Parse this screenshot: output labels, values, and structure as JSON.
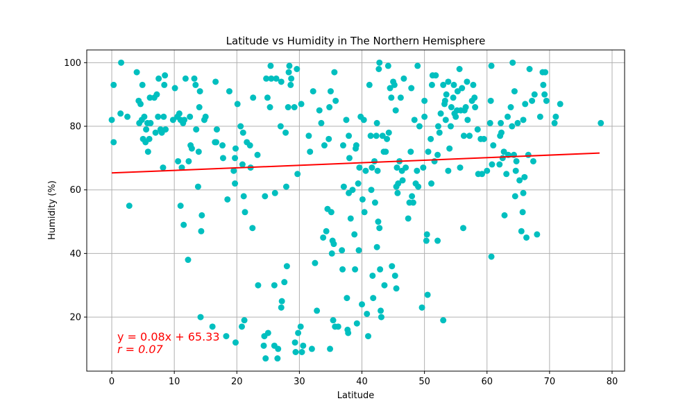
{
  "chart_data": {
    "type": "scatter",
    "title": "Latitude vs Humidity in The Northern Hemisphere",
    "xlabel": "Latitude",
    "ylabel": "Humidity (%)",
    "xlim": [
      -4,
      82
    ],
    "ylim": [
      3,
      104
    ],
    "xticks": [
      0,
      10,
      20,
      30,
      40,
      50,
      60,
      70,
      80
    ],
    "yticks": [
      20,
      40,
      60,
      80,
      100
    ],
    "grid": true,
    "colors": {
      "points": "#00bfbf",
      "regression": "#ff0000",
      "grid": "#b0b0b0",
      "axes": "#000000"
    },
    "regression": {
      "slope": 0.08,
      "intercept": 65.33,
      "x_range": [
        0,
        78
      ],
      "equation_text": "y = 0.08x + 65.33",
      "r_text": "r = 0.07"
    },
    "points": [
      [
        0,
        82
      ],
      [
        0.3,
        93
      ],
      [
        0.3,
        75
      ],
      [
        1.4,
        84
      ],
      [
        1.5,
        100
      ],
      [
        2.5,
        83
      ],
      [
        2.8,
        55
      ],
      [
        4,
        97
      ],
      [
        4.3,
        88
      ],
      [
        4.4,
        81
      ],
      [
        4.6,
        87
      ],
      [
        4.8,
        82
      ],
      [
        4.9,
        93
      ],
      [
        5,
        76
      ],
      [
        5.2,
        83
      ],
      [
        5.4,
        75
      ],
      [
        5.5,
        79
      ],
      [
        5.7,
        81
      ],
      [
        5.8,
        72
      ],
      [
        6,
        76
      ],
      [
        6.1,
        89
      ],
      [
        6.2,
        81
      ],
      [
        6.8,
        89
      ],
      [
        7,
        78
      ],
      [
        7.2,
        90
      ],
      [
        7.4,
        83
      ],
      [
        7.5,
        95
      ],
      [
        7.8,
        79
      ],
      [
        8,
        78
      ],
      [
        8.2,
        67
      ],
      [
        8.3,
        83
      ],
      [
        8.4,
        93
      ],
      [
        8.5,
        96
      ],
      [
        8.6,
        79
      ],
      [
        9.8,
        82
      ],
      [
        10.1,
        92
      ],
      [
        10.5,
        83
      ],
      [
        10.6,
        69
      ],
      [
        10.8,
        84
      ],
      [
        11,
        82
      ],
      [
        11,
        55
      ],
      [
        11.2,
        67
      ],
      [
        11.4,
        81
      ],
      [
        11.5,
        49
      ],
      [
        11.6,
        82
      ],
      [
        11.8,
        95
      ],
      [
        12.2,
        38
      ],
      [
        12.3,
        69
      ],
      [
        12.5,
        83
      ],
      [
        12.6,
        74
      ],
      [
        12.8,
        73
      ],
      [
        13.2,
        95
      ],
      [
        13.4,
        93
      ],
      [
        13.5,
        79
      ],
      [
        13.8,
        61
      ],
      [
        13.9,
        72
      ],
      [
        14,
        86
      ],
      [
        14.1,
        91
      ],
      [
        14.2,
        20
      ],
      [
        14.3,
        47
      ],
      [
        14.4,
        52
      ],
      [
        14.8,
        82
      ],
      [
        15,
        83
      ],
      [
        16.1,
        17
      ],
      [
        16.5,
        75
      ],
      [
        16.6,
        94
      ],
      [
        16.7,
        75
      ],
      [
        16.8,
        79
      ],
      [
        17.7,
        74
      ],
      [
        17.8,
        70
      ],
      [
        18.3,
        14
      ],
      [
        18.5,
        57
      ],
      [
        18.8,
        91
      ],
      [
        19.5,
        66
      ],
      [
        19.7,
        70
      ],
      [
        19.7,
        62
      ],
      [
        19.8,
        73
      ],
      [
        19.8,
        12
      ],
      [
        20.1,
        87
      ],
      [
        20.6,
        80
      ],
      [
        20.8,
        17
      ],
      [
        20.9,
        68
      ],
      [
        21,
        78
      ],
      [
        21.1,
        58
      ],
      [
        21.2,
        19
      ],
      [
        21.3,
        53
      ],
      [
        21.6,
        75
      ],
      [
        22.1,
        74
      ],
      [
        22.2,
        67
      ],
      [
        22.5,
        48
      ],
      [
        22.6,
        89
      ],
      [
        23.3,
        71
      ],
      [
        23.4,
        30
      ],
      [
        24.3,
        11
      ],
      [
        24.4,
        14
      ],
      [
        24.5,
        58
      ],
      [
        24.6,
        7
      ],
      [
        24.7,
        95
      ],
      [
        24.9,
        89
      ],
      [
        25,
        15
      ],
      [
        25.3,
        86
      ],
      [
        25.4,
        99
      ],
      [
        25.5,
        95
      ],
      [
        26,
        11
      ],
      [
        26,
        30
      ],
      [
        26.1,
        59
      ],
      [
        26.3,
        95
      ],
      [
        26.5,
        7
      ],
      [
        26.6,
        10
      ],
      [
        27,
        80
      ],
      [
        27.1,
        94
      ],
      [
        27.1,
        23
      ],
      [
        27.2,
        25
      ],
      [
        27.6,
        31
      ],
      [
        27.8,
        78
      ],
      [
        27.9,
        61
      ],
      [
        28,
        36
      ],
      [
        28.2,
        86
      ],
      [
        28.3,
        97
      ],
      [
        28.4,
        99
      ],
      [
        28.6,
        93
      ],
      [
        28.7,
        95
      ],
      [
        29.2,
        86
      ],
      [
        29.3,
        12
      ],
      [
        29.4,
        9
      ],
      [
        29.6,
        98
      ],
      [
        29.7,
        65
      ],
      [
        29.8,
        15
      ],
      [
        30.2,
        17
      ],
      [
        30.3,
        87
      ],
      [
        30.4,
        9
      ],
      [
        30.6,
        11
      ],
      [
        31.5,
        77
      ],
      [
        31.7,
        72
      ],
      [
        32,
        10
      ],
      [
        32.2,
        91
      ],
      [
        32.5,
        37
      ],
      [
        32.8,
        22
      ],
      [
        33.2,
        85
      ],
      [
        33.5,
        81
      ],
      [
        33.8,
        45
      ],
      [
        34,
        74
      ],
      [
        34.3,
        47
      ],
      [
        34.5,
        54
      ],
      [
        34.7,
        76
      ],
      [
        34.8,
        86
      ],
      [
        34.9,
        10
      ],
      [
        35,
        91
      ],
      [
        35.1,
        53
      ],
      [
        35.2,
        40
      ],
      [
        35.3,
        44
      ],
      [
        35.4,
        19
      ],
      [
        35.5,
        43
      ],
      [
        35.6,
        97
      ],
      [
        35.7,
        17
      ],
      [
        35.8,
        88
      ],
      [
        36.2,
        17
      ],
      [
        36.8,
        41
      ],
      [
        36.9,
        35
      ],
      [
        37,
        74
      ],
      [
        37.1,
        61
      ],
      [
        37.5,
        82
      ],
      [
        37.6,
        26
      ],
      [
        37.7,
        16
      ],
      [
        37.8,
        15
      ],
      [
        37.9,
        59
      ],
      [
        37.9,
        77
      ],
      [
        38,
        70
      ],
      [
        38.2,
        51
      ],
      [
        38.5,
        60
      ],
      [
        38.8,
        46
      ],
      [
        38.9,
        35
      ],
      [
        39,
        73
      ],
      [
        39.1,
        74
      ],
      [
        39.2,
        18
      ],
      [
        39.4,
        62
      ],
      [
        39.5,
        41
      ],
      [
        39.6,
        67
      ],
      [
        39.8,
        83
      ],
      [
        40,
        24
      ],
      [
        40.1,
        57
      ],
      [
        40.3,
        82
      ],
      [
        40.4,
        53
      ],
      [
        40.6,
        66
      ],
      [
        40.8,
        21
      ],
      [
        41,
        14
      ],
      [
        41.2,
        93
      ],
      [
        41.4,
        77
      ],
      [
        41.5,
        60
      ],
      [
        41.6,
        67
      ],
      [
        41.7,
        33
      ],
      [
        41.8,
        26
      ],
      [
        42,
        69
      ],
      [
        42.1,
        56
      ],
      [
        42.3,
        77
      ],
      [
        42.4,
        81
      ],
      [
        42.4,
        42
      ],
      [
        42.5,
        66
      ],
      [
        42.6,
        50
      ],
      [
        42.7,
        98
      ],
      [
        42.8,
        100
      ],
      [
        42.8,
        48
      ],
      [
        42.9,
        35
      ],
      [
        43,
        22
      ],
      [
        43.1,
        20
      ],
      [
        43.3,
        77
      ],
      [
        43.5,
        72
      ],
      [
        43.6,
        30
      ],
      [
        43.8,
        72
      ],
      [
        44,
        76
      ],
      [
        44.2,
        99
      ],
      [
        44.3,
        78
      ],
      [
        44.5,
        92
      ],
      [
        44.7,
        89
      ],
      [
        44.8,
        36
      ],
      [
        45,
        94
      ],
      [
        45.2,
        93
      ],
      [
        45.3,
        33
      ],
      [
        45.4,
        85
      ],
      [
        45.5,
        29
      ],
      [
        45.5,
        61
      ],
      [
        45.6,
        67
      ],
      [
        45.7,
        59
      ],
      [
        45.8,
        62
      ],
      [
        46,
        69
      ],
      [
        46.2,
        89
      ],
      [
        46.4,
        66
      ],
      [
        46.5,
        63
      ],
      [
        46.7,
        95
      ],
      [
        47,
        67
      ],
      [
        47.4,
        51
      ],
      [
        47.6,
        56
      ],
      [
        47.8,
        72
      ],
      [
        47.9,
        92
      ],
      [
        48,
        58
      ],
      [
        48.2,
        56
      ],
      [
        48.4,
        82
      ],
      [
        48.6,
        62
      ],
      [
        48.8,
        66
      ],
      [
        48.9,
        99
      ],
      [
        49,
        61
      ],
      [
        49.2,
        80
      ],
      [
        49.6,
        23
      ],
      [
        49.8,
        67
      ],
      [
        50,
        83
      ],
      [
        50,
        88
      ],
      [
        50.3,
        44
      ],
      [
        50.4,
        46
      ],
      [
        50.5,
        27
      ],
      [
        50.6,
        72
      ],
      [
        51,
        76
      ],
      [
        51.1,
        62
      ],
      [
        51.2,
        93
      ],
      [
        51.3,
        96
      ],
      [
        51.6,
        69
      ],
      [
        51.8,
        96
      ],
      [
        52.1,
        44
      ],
      [
        52.1,
        71
      ],
      [
        52.2,
        80
      ],
      [
        52.4,
        78
      ],
      [
        52.6,
        84
      ],
      [
        53,
        93
      ],
      [
        53,
        19
      ],
      [
        53.2,
        87
      ],
      [
        53.3,
        88
      ],
      [
        53.4,
        82
      ],
      [
        53.5,
        90
      ],
      [
        53.8,
        66
      ],
      [
        53.8,
        94
      ],
      [
        54,
        73
      ],
      [
        54.2,
        80
      ],
      [
        54.3,
        86
      ],
      [
        54.6,
        89
      ],
      [
        54.7,
        93
      ],
      [
        54.8,
        84
      ],
      [
        55,
        83
      ],
      [
        55.2,
        85
      ],
      [
        55.3,
        91
      ],
      [
        55.6,
        98
      ],
      [
        55.7,
        67
      ],
      [
        55.8,
        85
      ],
      [
        56,
        92
      ],
      [
        56.2,
        48
      ],
      [
        56.3,
        77
      ],
      [
        56.4,
        85
      ],
      [
        56.6,
        86
      ],
      [
        56.8,
        94
      ],
      [
        56.9,
        82
      ],
      [
        57.2,
        77
      ],
      [
        57.6,
        88
      ],
      [
        57.8,
        93
      ],
      [
        58,
        89
      ],
      [
        58.1,
        86
      ],
      [
        58.5,
        79
      ],
      [
        58.6,
        65
      ],
      [
        59,
        76
      ],
      [
        59.2,
        65
      ],
      [
        59.5,
        76
      ],
      [
        60,
        66
      ],
      [
        60.5,
        81
      ],
      [
        60.6,
        88
      ],
      [
        60.7,
        39
      ],
      [
        60.7,
        99
      ],
      [
        60.8,
        68
      ],
      [
        61,
        74
      ],
      [
        62,
        68
      ],
      [
        62.1,
        77
      ],
      [
        62.2,
        81
      ],
      [
        62.3,
        78
      ],
      [
        62.5,
        70
      ],
      [
        62.7,
        72
      ],
      [
        62.8,
        52
      ],
      [
        63.1,
        65
      ],
      [
        63.3,
        83
      ],
      [
        63.4,
        71
      ],
      [
        63.8,
        86
      ],
      [
        64,
        80
      ],
      [
        64.1,
        100
      ],
      [
        64.3,
        71
      ],
      [
        64.4,
        91
      ],
      [
        64.5,
        58
      ],
      [
        64.6,
        66
      ],
      [
        64.7,
        69
      ],
      [
        64.9,
        81
      ],
      [
        65.2,
        63
      ],
      [
        65.5,
        47
      ],
      [
        65.7,
        53
      ],
      [
        65.8,
        59
      ],
      [
        65.8,
        82
      ],
      [
        66,
        64
      ],
      [
        66.1,
        87
      ],
      [
        66.3,
        45
      ],
      [
        66.6,
        71
      ],
      [
        66.8,
        98
      ],
      [
        67.2,
        88
      ],
      [
        67.4,
        69
      ],
      [
        67.6,
        90
      ],
      [
        68,
        46
      ],
      [
        68.5,
        83
      ],
      [
        68.9,
        97
      ],
      [
        69,
        93
      ],
      [
        69.2,
        90
      ],
      [
        69.3,
        97
      ],
      [
        69.5,
        88
      ],
      [
        70.8,
        81
      ],
      [
        71,
        83
      ],
      [
        71.7,
        87
      ],
      [
        78.2,
        81
      ]
    ]
  }
}
